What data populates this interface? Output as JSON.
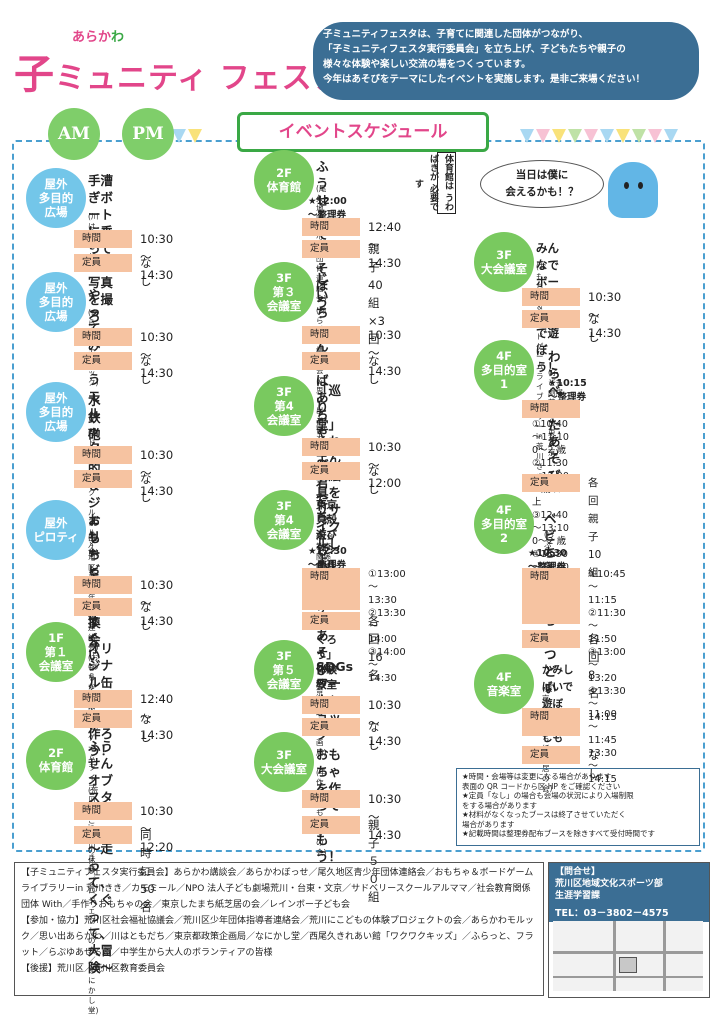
{
  "header": {
    "logo_top": "あらか",
    "logo_wa": "わ",
    "logo_ko": "子",
    "logo_main": "ミュニティ フェスタ",
    "intro": [
      "子ミュニティフェスタは、子育てに関連した団体がつながり、",
      "「子ミュニティフェスタ実行委員会」を立ち上げ、子どもたちや親子の",
      "様々な体験や楽しい交流の場をつくっています。",
      "今年はあそびをテーマにしたイベントを実施します。是非ご来場ください！"
    ],
    "am": "AM",
    "pm": "PM",
    "title": "イベントスケジュール"
  },
  "labels": {
    "time": "時間",
    "capacity": "定員"
  },
  "left": [
    {
      "badge": "屋外\n多目的\n広場",
      "title": "手漕ぎボートに乗って\n記念写真を撮ろう！",
      "org": "(川はともだち)",
      "time": "10:30～14:30",
      "cap": "なし"
    },
    {
      "badge": "屋外\n多目的\n広場",
      "title": "やってみようモルック",
      "org": "(あらかわモルック)",
      "time": "10:30～14:30",
      "cap": "なし"
    },
    {
      "badge": "屋外\n多目的\n広場",
      "title": "水鉄砲射的＆\nジェリービーズすくい",
      "org": "(サドベリースクールアルママ)",
      "time": "10:30～14:30",
      "cap": "なし"
    },
    {
      "badge": "屋外\nピロティ",
      "title": "おもちゃの交換会",
      "org": "(尾久地区青少年団体連絡会)\n(おもちゃ＆ボードゲームライブラリー\nin 荒川きき)",
      "time": "10:30～14:30",
      "cap": "なし"
    },
    {
      "badge": "1F\n第１\n会議室",
      "title": "オリジナル缶バッジを作ろう！",
      "org": "(あらかわぼっせ)",
      "time": "12:40～14:30",
      "cap": "なし"
    },
    {
      "badge": "2F\n体育館",
      "title": "ふうせんオブスタクル！\n～走って、くぐって、大冒険～",
      "org": "(荒川にこどもの体験プロジェクトの会／なにかし堂)",
      "time": "10:30～12:20",
      "cap": "同時に 50 名"
    }
  ],
  "middle": [
    {
      "badge": "2F\n体育館",
      "title": "ふうせんであそぼう",
      "org": "(尾久地区青少年団体連絡会)",
      "note": "★12:00～整理券配布",
      "time": "12:40～14:30",
      "cap": "親子 40 組×3回"
    },
    {
      "badge": "3F\n第３\n会議室",
      "title": "じいちゃんやばあちゃんが、\n君たちくらいの時のあそび",
      "org": "(あらかわ講談会＆思い出あらかわ)",
      "time": "10:30～14:30",
      "cap": "なし"
    },
    {
      "badge": "3F\n第4\n会議室",
      "title": "「巡り堂」くれよん＆絵具を\nリサイクルしよう！",
      "org": "(カモミール)",
      "time": "10:30～12:00",
      "cap": "なし"
    },
    {
      "badge": "3F\n第4\n会議室",
      "title": "東京貝殻遊び「シェルアクセサリー\nをつくろう」体験教室",
      "org": "(社会教育関係団体 With)",
      "note": "★12:30～整理券配布",
      "time": "①13:00～13:30\n②13:30～14:00\n③14:00～14:30",
      "cap": "各回16名"
    },
    {
      "badge": "3F\n第５\n会議室",
      "title": "SDGsワークショップ",
      "org": "(東京都政策企画局)",
      "time": "10:30～14:30",
      "cap": "なし"
    },
    {
      "badge": "3F\n大会議室",
      "title": "おもちゃを作って楽しもう！",
      "org": "(手作りおもちゃの会)",
      "time": "10:30～14:30",
      "cap": "親子５０組"
    }
  ],
  "right": [
    {
      "badge": "3F\n大会議室",
      "title": "みんなでボードゲームで遊ぼう！",
      "org": "(おもちゃ＆ボードゲームライブラリー\nin 荒川きき)",
      "time": "10:30～14:30",
      "cap": "なし"
    },
    {
      "badge": "4F\n多目的室\n1",
      "title": "わらべうたあそび",
      "org": "(子ども劇場荒川・台東・文京)",
      "note": "★10:15～整理券配布",
      "time": "①10:40～11:10　0～2 歳\n②11:30～12:00　3 歳以上\n③12:40～13:10　0～2 歳\n④13:30～14:00　3 歳以上",
      "cap": "各回 親子 10 組"
    },
    {
      "badge": "4F\n多目的室\n2",
      "title": "ベビちゃんたちのつどい",
      "org": "(らぷゆあせるふ)",
      "note": "★10:30～整理券配布",
      "time": "①10:45～11:15\n②11:30～11:50\n③13:00～13:20\n④13:30～14:15",
      "cap": "各回 8 名"
    },
    {
      "badge": "4F\n音楽室",
      "title": "かみしばいで遊ぼう・楽しもう！！",
      "org": "(東京したまち紙芝居の会)",
      "time": "11:00～11:45\n13:30～14:15",
      "cap": "なし"
    }
  ],
  "vertical_note": "体育館は うわばきが 必要です",
  "bubble": "当日は僕に\n会えるかも！？",
  "notes": "★時間・会場等は変更になる場合があります\n表面の QR コードから区 HP をご確認ください\n★定員「なし」の場合も会場の状況により入場制限\nをする場合があります\n★材料がなくなったブースは終了させていただく\n場合があります\n★記載時間は整理券配布ブースを除きすべて受付時間です",
  "footer": {
    "committee": "【子ミュニティフェスタ実行委員会】あらかわ講談会／あらかわぼっせ／尾久地区青少年団体連絡会／おもちゃ＆ボードゲームライブラリーin 荒川きき／カモミール／NPO 法人子ども劇場荒川・台東・文京／サドベリースクールアルママ／社会教育関係団体 With／手作りおもちゃの会／東京したまち紙芝居の会／レインボー子ども会",
    "cooperation": "【参加・協力】荒川区社会福祉協議会／荒川区少年団体指導者連絡会／荒川にこどもの体験プロジェクトの会／あらかわモルック／思い出あらかわ／川はともだち／東京都政策企画局／なにかし堂／西尾久きれあい館「ワクワクキッズ」／ふらっと、フラット／らぷゆあせるふ／中学生から大人のボランティアの皆様",
    "support": "【後援】荒川区／荒川区教育委員会"
  },
  "contact": {
    "head": "【問合せ】\n荒川区地域文化スポーツ部\n生涯学習課",
    "tel": "TEL：03－3802－4575"
  }
}
